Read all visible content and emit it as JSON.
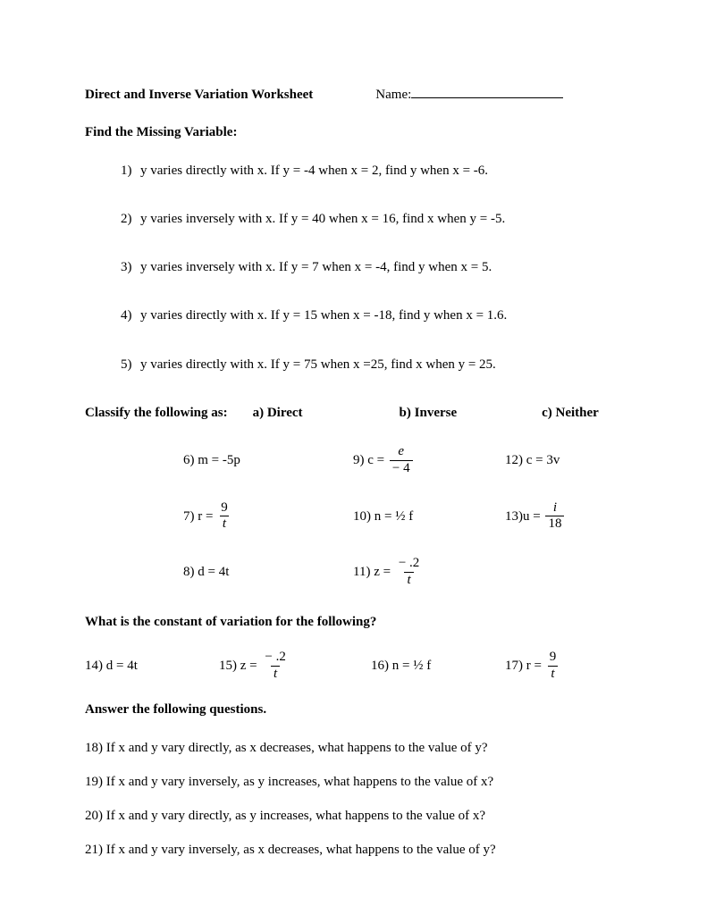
{
  "header": {
    "title": "Direct and Inverse Variation Worksheet",
    "name_label": "Name:"
  },
  "section1": {
    "heading": "Find the Missing Variable:",
    "items": [
      {
        "n": "1)",
        "text": "y varies directly with x. If y = -4 when x = 2, find y when x = -6."
      },
      {
        "n": "2)",
        "text": "y varies inversely with x. If y = 40 when x = 16, find x when y = -5."
      },
      {
        "n": "3)",
        "text": "y varies inversely with x. If y = 7 when x = -4, find y when x = 5."
      },
      {
        "n": "4)",
        "text": "y varies directly with x. If y = 15 when x = -18, find y when x = 1.6."
      },
      {
        "n": "5)",
        "text": "y varies directly with x. If y = 75 when x =25, find x when y = 25."
      }
    ]
  },
  "section2": {
    "heading": "Classify the following as:",
    "opt_a": "a) Direct",
    "opt_b": "b) Inverse",
    "opt_c": "c) Neither",
    "rows": [
      {
        "col1": {
          "n": "6)",
          "lhs": "m = -5p"
        },
        "col2": {
          "n": "9)",
          "lhs": "c =",
          "frac_num": "e",
          "frac_den": "− 4"
        },
        "col3": {
          "n": "12)",
          "lhs": "c = 3v"
        }
      },
      {
        "col1": {
          "n": "7)",
          "lhs": "r =",
          "frac_num": "9",
          "frac_den": "t"
        },
        "col2": {
          "n": "10)",
          "lhs": "n = ½ f"
        },
        "col3": {
          "n": "13)",
          "lhs": " u =",
          "frac_num": "i",
          "frac_den": "18"
        }
      },
      {
        "col1": {
          "n": "8)",
          "lhs": "d = 4t"
        },
        "col2": {
          "n": "11)",
          "lhs": "z =",
          "frac_num": "− .2",
          "frac_den": "t"
        },
        "col3": null
      }
    ]
  },
  "section3": {
    "heading": "What is the constant of variation for the following?",
    "items": {
      "c1": {
        "n": "14)",
        "lhs": "d = 4t"
      },
      "c2": {
        "n": "15)",
        "lhs": "z =",
        "frac_num": "− .2",
        "frac_den": "t"
      },
      "c3": {
        "n": "16)",
        "lhs": "n = ½ f"
      },
      "c4": {
        "n": "17)",
        "lhs": "r =",
        "frac_num": "9",
        "frac_den": "t"
      }
    }
  },
  "section4": {
    "heading": "Answer the following questions.",
    "items": [
      {
        "n": "18)",
        "text": "If x and y vary directly, as x decreases, what happens to the value of y?"
      },
      {
        "n": "19)",
        "text": "If x and y vary inversely, as y increases, what happens to the value of x?"
      },
      {
        "n": "20)",
        "text": "If x and y vary directly, as y increases, what happens to the value of x?"
      },
      {
        "n": "21)",
        "text": "If x and y vary inversely, as x decreases, what happens to the value of y?"
      }
    ]
  }
}
